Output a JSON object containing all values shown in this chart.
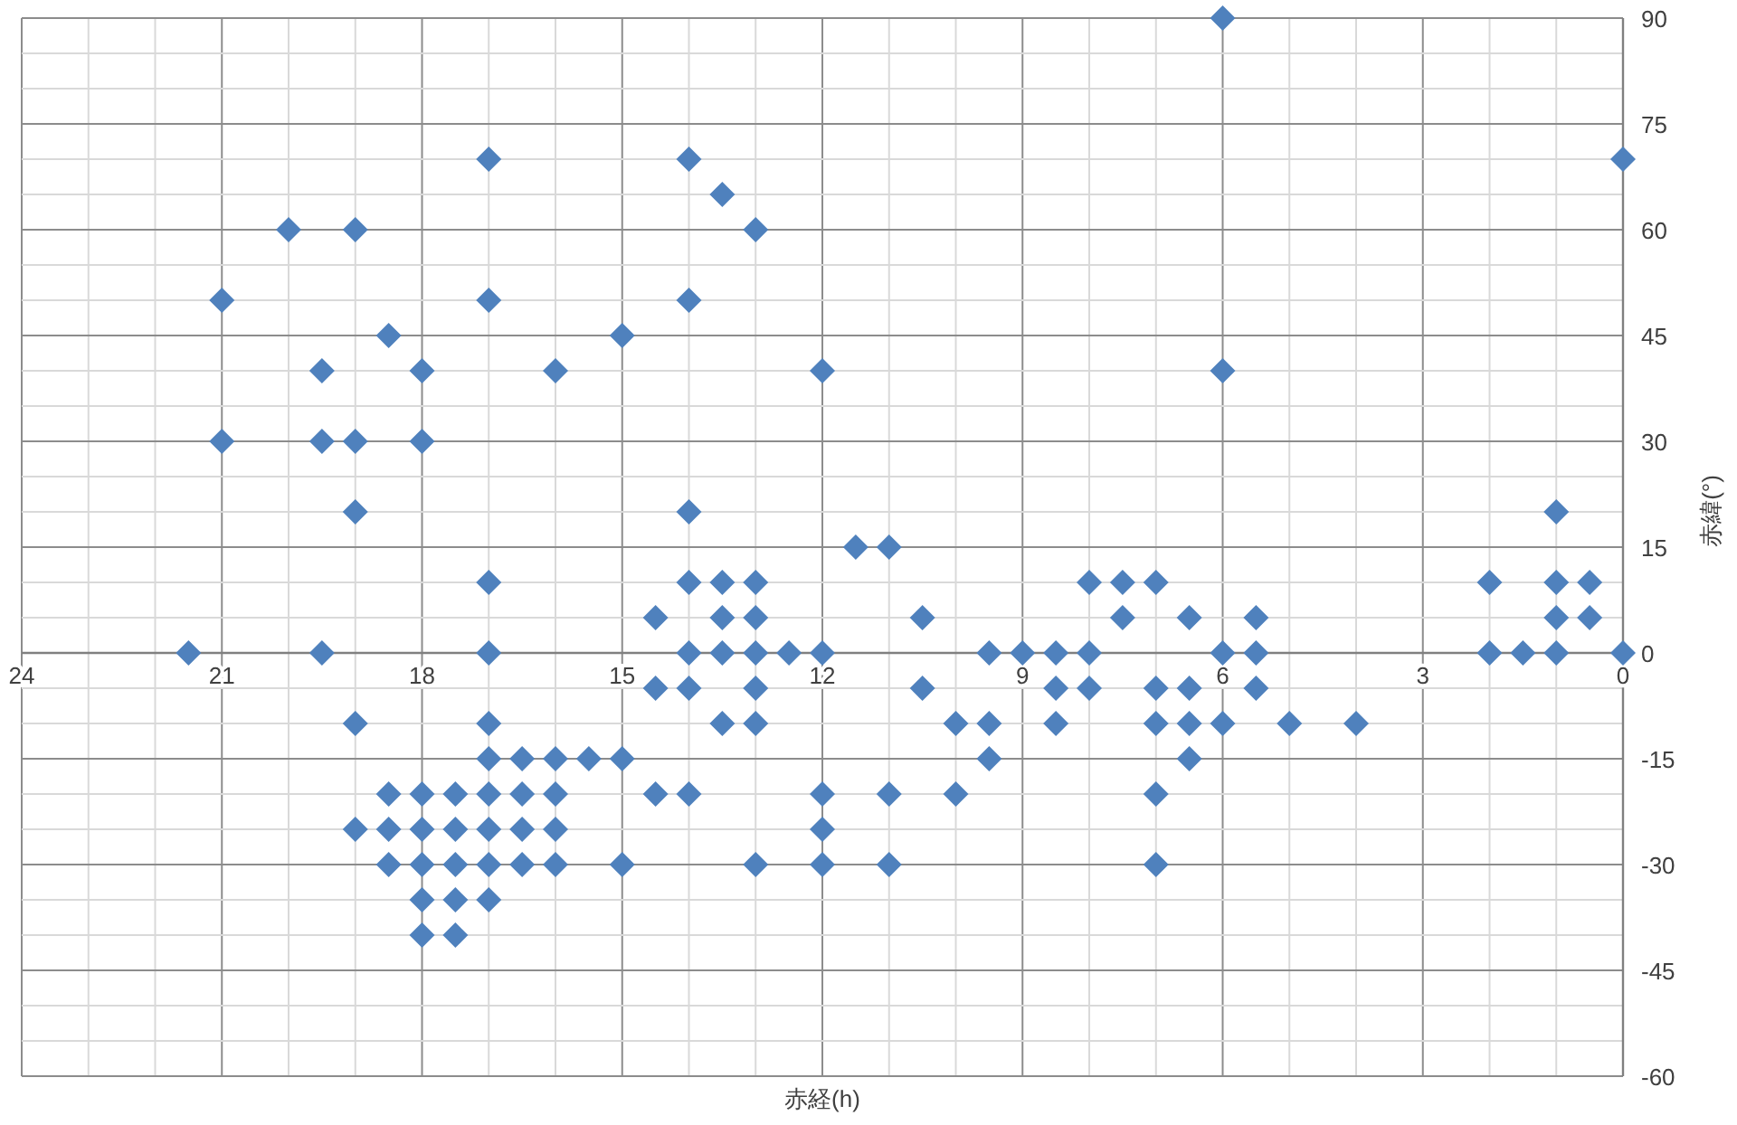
{
  "chart_data": {
    "type": "scatter",
    "xlabel": "赤経(h)",
    "ylabel": "赤緯(°)",
    "xlim": [
      24,
      0
    ],
    "xticks": [
      24,
      21,
      18,
      15,
      12,
      9,
      6,
      3,
      0
    ],
    "ylim": [
      -60,
      90
    ],
    "yticks": [
      -60,
      -45,
      -30,
      -15,
      0,
      15,
      30,
      45,
      60,
      75,
      90
    ],
    "grid": true,
    "marker": "diamond",
    "series": [
      {
        "color": "#4f81bd",
        "x": [
          2,
          2,
          1.5,
          1,
          1,
          1,
          1,
          0.5,
          0.5,
          0,
          0,
          4,
          5,
          5.5,
          5.5,
          5.5,
          6,
          6,
          6,
          6,
          6.5,
          6.5,
          6.5,
          6.5,
          7,
          7,
          7,
          7,
          7,
          7.5,
          7.5,
          8,
          8,
          8,
          8.5,
          8.5,
          8.5,
          9,
          9.5,
          9.5,
          9.5,
          10,
          10,
          10.5,
          10.5,
          11,
          11,
          11,
          11.5,
          12,
          12,
          12,
          12,
          12,
          12.5,
          13,
          13,
          13,
          13,
          13,
          13,
          13,
          13.5,
          13.5,
          13.5,
          13.5,
          13.5,
          14,
          14,
          14,
          14,
          14,
          14,
          14,
          14.5,
          14.5,
          14.5,
          15,
          15,
          15,
          15.5,
          16,
          16,
          16,
          16,
          16,
          16.5,
          16.5,
          16.5,
          16.5,
          17,
          17,
          17,
          17,
          17,
          17,
          17,
          17,
          17,
          17,
          17.5,
          17.5,
          17.5,
          17.5,
          17.5,
          18,
          18,
          18,
          18,
          18,
          18,
          18,
          18.5,
          18.5,
          18.5,
          18.5,
          19,
          19,
          19,
          19,
          19,
          19.5,
          19.5,
          19.5,
          20,
          21,
          21,
          21.5
        ],
        "values": [
          10,
          0,
          0,
          20,
          10,
          5,
          0,
          10,
          5,
          0,
          70,
          -10,
          -10,
          5,
          0,
          -5,
          90,
          40,
          0,
          -10,
          5,
          -5,
          -10,
          -15,
          10,
          -5,
          -10,
          -20,
          -30,
          10,
          5,
          10,
          0,
          -5,
          0,
          -5,
          -10,
          0,
          0,
          -10,
          -15,
          -10,
          -20,
          5,
          -5,
          15,
          -20,
          -30,
          15,
          40,
          0,
          -20,
          -25,
          -30,
          0,
          60,
          10,
          5,
          0,
          -5,
          -10,
          -30,
          65,
          10,
          5,
          0,
          -10,
          70,
          50,
          20,
          10,
          0,
          -5,
          -20,
          5,
          -5,
          -20,
          45,
          -15,
          -30,
          -15,
          40,
          -15,
          -20,
          -25,
          -30,
          -15,
          -20,
          -25,
          -30,
          70,
          50,
          10,
          0,
          -10,
          -15,
          -20,
          -25,
          -30,
          -35,
          -20,
          -25,
          -30,
          -35,
          -40,
          40,
          30,
          -20,
          -25,
          -30,
          -35,
          -40,
          45,
          -20,
          -25,
          -30,
          60,
          30,
          20,
          -10,
          -25,
          40,
          30,
          0,
          60,
          50,
          30,
          0
        ]
      }
    ]
  }
}
